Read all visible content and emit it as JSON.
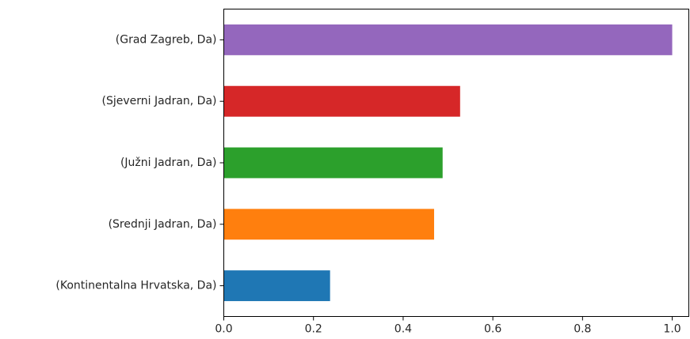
{
  "chart_data": {
    "type": "bar",
    "orientation": "horizontal",
    "title": "",
    "xlabel": "",
    "ylabel": "",
    "categories": [
      "(Kontinentalna Hrvatska, Da)",
      "(Srednji Jadran, Da)",
      "(Južni Jadran, Da)",
      "(Sjeverni Jadran, Da)",
      "(Grad Zagreb, Da)"
    ],
    "values": [
      0.237,
      0.469,
      0.488,
      0.527,
      1.0
    ],
    "colors": [
      "#1f77b4",
      "#ff7f0e",
      "#2ca02c",
      "#d62728",
      "#9467bd"
    ],
    "xlim": [
      0.0,
      1.037
    ],
    "xticks": [
      0.0,
      0.2,
      0.4,
      0.6,
      0.8,
      1.0
    ],
    "xtick_labels": [
      "0.0",
      "0.2",
      "0.4",
      "0.6",
      "0.8",
      "1.0"
    ],
    "grid": false,
    "legend": false
  }
}
